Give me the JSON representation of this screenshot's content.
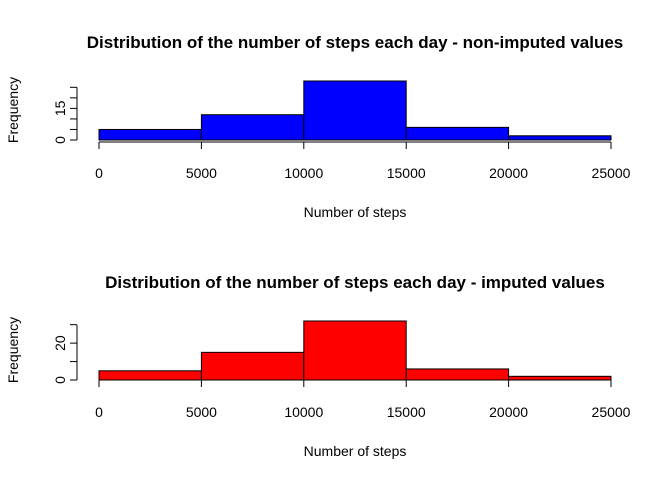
{
  "chart_data": [
    {
      "type": "bar",
      "title": "Distribution of the number of steps each day - non-imputed values",
      "xlabel": "Number of steps",
      "ylabel": "Frequency",
      "bin_edges": [
        0,
        5000,
        10000,
        15000,
        20000,
        25000
      ],
      "values": [
        5,
        12,
        28,
        6,
        2
      ],
      "xlim": [
        0,
        25000
      ],
      "ylim": [
        0,
        28
      ],
      "x_ticks": [
        "0",
        "5000",
        "10000",
        "15000",
        "20000",
        "25000"
      ],
      "x_tick_values": [
        0,
        5000,
        10000,
        15000,
        20000,
        25000
      ],
      "y_ticks": [
        0,
        5,
        10,
        15,
        20,
        25
      ],
      "y_tick_labels": [
        {
          "value": 0,
          "label": "0"
        },
        {
          "value": 15,
          "label": "15"
        }
      ],
      "color": "#0000ff",
      "grid": false
    },
    {
      "type": "bar",
      "title": "Distribution of the number of steps each day - imputed values",
      "xlabel": "Number of steps",
      "ylabel": "Frequency",
      "bin_edges": [
        0,
        5000,
        10000,
        15000,
        20000,
        25000
      ],
      "values": [
        5,
        15,
        32,
        6,
        2
      ],
      "xlim": [
        0,
        25000
      ],
      "ylim": [
        0,
        32
      ],
      "x_ticks": [
        "0",
        "5000",
        "10000",
        "15000",
        "20000",
        "25000"
      ],
      "x_tick_values": [
        0,
        5000,
        10000,
        15000,
        20000,
        25000
      ],
      "y_ticks": [
        0,
        10,
        20,
        30
      ],
      "y_tick_labels": [
        {
          "value": 0,
          "label": "0"
        },
        {
          "value": 20,
          "label": "20"
        }
      ],
      "color": "#ff0000",
      "grid": false
    }
  ]
}
